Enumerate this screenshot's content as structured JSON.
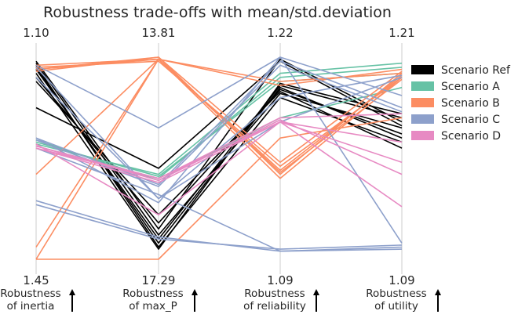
{
  "chart_data": {
    "type": "parallel_coordinates",
    "title": "Robustness trade-offs with mean/std.deviation",
    "axes": [
      {
        "label": "Robustness\nof inertia",
        "top": "1.10",
        "bottom": "1.45"
      },
      {
        "label": "Robustness\nof max_P",
        "top": "13.81",
        "bottom": "17.29"
      },
      {
        "label": "Robustness\nof reliability",
        "top": "1.22",
        "bottom": "1.09"
      },
      {
        "label": "Robustness\nof utility",
        "top": "1.21",
        "bottom": "1.09"
      }
    ],
    "direction_arrows": "up",
    "legend_placement": "right",
    "grid": false,
    "series": [
      {
        "name": "Scenario Ref",
        "color": "#000000",
        "lines": [
          [
            0.95,
            0.08,
            0.85,
            0.6
          ],
          [
            0.97,
            0.12,
            0.82,
            0.65
          ],
          [
            0.96,
            0.06,
            0.8,
            0.58
          ],
          [
            0.94,
            0.1,
            0.86,
            0.7
          ],
          [
            0.98,
            0.15,
            0.99,
            0.68
          ],
          [
            0.9,
            0.18,
            0.84,
            0.62
          ],
          [
            0.88,
            0.22,
            0.83,
            0.55
          ],
          [
            0.92,
            0.05,
            0.87,
            0.72
          ],
          [
            0.75,
            0.45,
            0.98,
            0.66
          ]
        ]
      },
      {
        "name": "Scenario A",
        "color": "#66c2a5",
        "lines": [
          [
            0.56,
            0.4,
            0.9,
            0.95
          ],
          [
            0.57,
            0.42,
            0.92,
            0.97
          ],
          [
            0.58,
            0.41,
            0.88,
            0.92
          ],
          [
            0.59,
            0.39,
            0.7,
            0.85
          ]
        ]
      },
      {
        "name": "Scenario B",
        "color": "#fc8d62",
        "lines": [
          [
            0.0,
            0.0,
            0.6,
            0.7
          ],
          [
            0.06,
            0.99,
            0.4,
            0.9
          ],
          [
            0.93,
            1.0,
            0.42,
            0.92
          ],
          [
            0.94,
            0.99,
            0.44,
            0.91
          ],
          [
            0.95,
            0.98,
            0.46,
            0.9
          ],
          [
            0.94,
            1.0,
            0.48,
            0.93
          ],
          [
            0.96,
            0.99,
            0.43,
            0.89
          ],
          [
            0.42,
            0.99,
            0.88,
            0.92
          ],
          [
            0.0,
            0.99,
            0.86,
            0.94
          ]
        ]
      },
      {
        "name": "Scenario C",
        "color": "#8da0cb",
        "lines": [
          [
            0.27,
            0.1,
            0.05,
            0.07
          ],
          [
            0.29,
            0.11,
            0.04,
            0.05
          ],
          [
            0.55,
            0.32,
            0.04,
            0.06
          ],
          [
            0.59,
            0.36,
            0.96,
            0.73
          ],
          [
            0.6,
            0.37,
            0.98,
            0.75
          ],
          [
            0.6,
            0.28,
            1.0,
            0.81
          ],
          [
            0.95,
            0.3,
            0.68,
            0.9
          ],
          [
            0.96,
            0.65,
            1.0,
            0.08
          ],
          [
            0.9,
            0.3,
            0.8,
            0.91
          ]
        ]
      },
      {
        "name": "Scenario D",
        "color": "#e78ac3",
        "lines": [
          [
            0.55,
            0.38,
            0.68,
            0.26
          ],
          [
            0.56,
            0.39,
            0.69,
            0.42
          ],
          [
            0.57,
            0.22,
            0.68,
            0.48
          ],
          [
            0.55,
            0.4,
            0.68,
            0.58
          ],
          [
            0.56,
            0.4,
            0.7,
            0.72
          ]
        ]
      }
    ]
  }
}
